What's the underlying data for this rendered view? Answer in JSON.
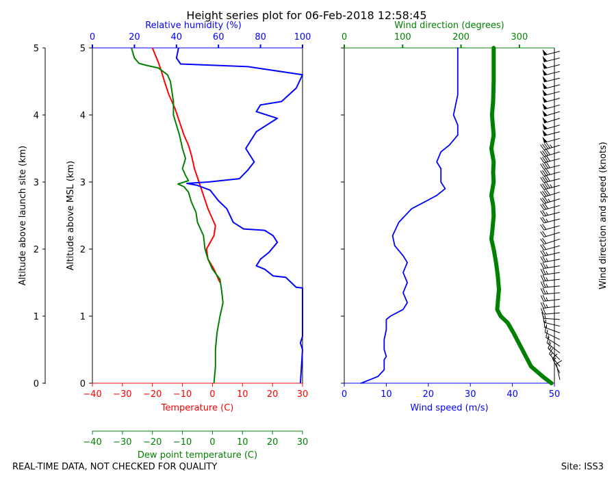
{
  "title": "Height series plot for 06-Feb-2018 12:58:45",
  "footer": {
    "left": "REAL-TIME DATA, NOT CHECKED FOR QUALITY",
    "right": "Site: ISS3"
  },
  "colors": {
    "temperature": "#ff0000",
    "dewpoint": "#008000",
    "humidity": "#0000ff",
    "wind_speed": "#0000ff",
    "wind_direction": "#008000",
    "barb": "#000000"
  },
  "chart_data": [
    {
      "type": "line",
      "panel": "thermodynamic",
      "y_axes": {
        "left_outer": {
          "label": "Altitude above launch site (km)",
          "ylim": [
            0,
            5
          ],
          "ticks": [
            0,
            1,
            2,
            3,
            4,
            5
          ]
        },
        "left_inner": {
          "label": "Altitude above MSL (km)",
          "ylim": [
            0,
            5
          ],
          "ticks": [
            0,
            1,
            2,
            3,
            4,
            5
          ]
        }
      },
      "x_axes": {
        "temperature": {
          "label": "Temperature (C)",
          "xlim": [
            -40,
            30
          ],
          "ticks": [
            -40,
            -30,
            -20,
            -10,
            0,
            10,
            20,
            30
          ],
          "color": "#ff0000"
        },
        "dewpoint": {
          "label": "Dew point temperature (C)",
          "xlim": [
            -40,
            30
          ],
          "ticks": [
            -40,
            -30,
            -20,
            -10,
            0,
            10,
            20,
            30
          ],
          "color": "#008000"
        },
        "humidity": {
          "label": "Relative humidity (%)",
          "xlim": [
            0,
            100
          ],
          "ticks": [
            0,
            20,
            40,
            60,
            80,
            100
          ],
          "color": "#0000ff"
        }
      },
      "series": [
        {
          "axis": "temperature",
          "color": "#ff0000",
          "points": [
            [
              2.5,
              1.5
            ],
            [
              0.5,
              1.7
            ],
            [
              -1.5,
              1.85
            ],
            [
              -2,
              2
            ],
            [
              0.5,
              2.2
            ],
            [
              1,
              2.35
            ],
            [
              -0.5,
              2.5
            ],
            [
              -1.5,
              2.6
            ],
            [
              -3,
              2.8
            ],
            [
              -4.5,
              3
            ],
            [
              -6,
              3.2
            ],
            [
              -7,
              3.4
            ],
            [
              -8,
              3.55
            ],
            [
              -9.5,
              3.7
            ],
            [
              -11,
              3.9
            ],
            [
              -12.5,
              4.1
            ],
            [
              -14.5,
              4.3
            ],
            [
              -16,
              4.5
            ],
            [
              -17,
              4.65
            ],
            [
              -18,
              4.78
            ],
            [
              -20,
              5
            ]
          ]
        },
        {
          "axis": "dewpoint",
          "color": "#008000",
          "points": [
            [
              0.5,
              0
            ],
            [
              1,
              0.25
            ],
            [
              1,
              0.5
            ],
            [
              1.5,
              0.75
            ],
            [
              2.5,
              1
            ],
            [
              3.5,
              1.2
            ],
            [
              3,
              1.4
            ],
            [
              2.5,
              1.55
            ],
            [
              0,
              1.7
            ],
            [
              -1.5,
              1.85
            ],
            [
              -2.5,
              2
            ],
            [
              -3,
              2.2
            ],
            [
              -4,
              2.3
            ],
            [
              -5,
              2.4
            ],
            [
              -5.5,
              2.55
            ],
            [
              -7,
              2.7
            ],
            [
              -8,
              2.85
            ],
            [
              -9.5,
              2.93
            ],
            [
              -11.5,
              2.97
            ],
            [
              -8,
              3.02
            ],
            [
              -9,
              3.1
            ],
            [
              -10,
              3.2
            ],
            [
              -9,
              3.35
            ],
            [
              -10,
              3.5
            ],
            [
              -11,
              3.7
            ],
            [
              -12,
              3.85
            ],
            [
              -13,
              4
            ],
            [
              -13,
              4.2
            ],
            [
              -13.5,
              4.35
            ],
            [
              -14,
              4.5
            ],
            [
              -15,
              4.6
            ],
            [
              -18,
              4.7
            ],
            [
              -22,
              4.74
            ],
            [
              -24.5,
              4.77
            ],
            [
              -26,
              4.85
            ],
            [
              -27,
              5
            ]
          ]
        },
        {
          "axis": "humidity",
          "color": "#0000ff",
          "points": [
            [
              99,
              0
            ],
            [
              100,
              0.5
            ],
            [
              99,
              0.6
            ],
            [
              100,
              0.7
            ],
            [
              100,
              1
            ],
            [
              100,
              1.42
            ],
            [
              97,
              1.43
            ],
            [
              92,
              1.58
            ],
            [
              86,
              1.6
            ],
            [
              82,
              1.7
            ],
            [
              78,
              1.75
            ],
            [
              80,
              1.85
            ],
            [
              84,
              1.95
            ],
            [
              88,
              2.1
            ],
            [
              86,
              2.2
            ],
            [
              82,
              2.28
            ],
            [
              72,
              2.3
            ],
            [
              67,
              2.4
            ],
            [
              64,
              2.6
            ],
            [
              60,
              2.72
            ],
            [
              56,
              2.88
            ],
            [
              50,
              2.95
            ],
            [
              45,
              2.98
            ],
            [
              55,
              3
            ],
            [
              70,
              3.05
            ],
            [
              74,
              3.18
            ],
            [
              77,
              3.3
            ],
            [
              73,
              3.5
            ],
            [
              78,
              3.75
            ],
            [
              88,
              3.95
            ],
            [
              78,
              4.05
            ],
            [
              80,
              4.15
            ],
            [
              90,
              4.2
            ],
            [
              97,
              4.4
            ],
            [
              100,
              4.6
            ],
            [
              74,
              4.72
            ],
            [
              42,
              4.76
            ],
            [
              40,
              4.85
            ],
            [
              41,
              5
            ]
          ]
        }
      ]
    },
    {
      "type": "line",
      "panel": "wind",
      "x_axes": {
        "wind_speed": {
          "label": "Wind speed (m/s)",
          "xlim": [
            0,
            50
          ],
          "ticks": [
            0,
            10,
            20,
            30,
            40,
            50
          ],
          "color": "#0000ff"
        },
        "wind_direction": {
          "label": "Wind direction (degrees)",
          "xlim": [
            0,
            360
          ],
          "ticks": [
            0,
            100,
            200,
            300
          ],
          "color": "#008000"
        }
      },
      "y_axes": {
        "ylim": [
          0,
          5
        ]
      },
      "right_label": "Wind direction and speed (knots)",
      "series": [
        {
          "axis": "wind_speed",
          "color": "#0000ff",
          "points": [
            [
              4,
              0
            ],
            [
              8,
              0.1
            ],
            [
              9.5,
              0.2
            ],
            [
              9.5,
              0.35
            ],
            [
              10,
              0.4
            ],
            [
              9.5,
              0.5
            ],
            [
              9.5,
              0.65
            ],
            [
              10,
              0.8
            ],
            [
              10,
              0.95
            ],
            [
              11,
              1
            ],
            [
              14,
              1.1
            ],
            [
              15,
              1.2
            ],
            [
              14,
              1.35
            ],
            [
              15,
              1.5
            ],
            [
              14,
              1.65
            ],
            [
              15,
              1.8
            ],
            [
              14,
              1.9
            ],
            [
              12,
              2.05
            ],
            [
              11.5,
              2.2
            ],
            [
              13,
              2.4
            ],
            [
              16,
              2.6
            ],
            [
              19,
              2.7
            ],
            [
              22,
              2.8
            ],
            [
              24,
              2.9
            ],
            [
              23,
              3
            ],
            [
              23,
              3.2
            ],
            [
              22,
              3.3
            ],
            [
              23,
              3.45
            ],
            [
              25,
              3.55
            ],
            [
              27,
              3.7
            ],
            [
              27,
              3.85
            ],
            [
              26,
              4
            ],
            [
              27,
              4.3
            ],
            [
              27,
              4.6
            ],
            [
              27,
              5
            ]
          ]
        },
        {
          "axis": "wind_direction",
          "color": "#008000",
          "points": [
            [
              355,
              0
            ],
            [
              340,
              0.1
            ],
            [
              320,
              0.25
            ],
            [
              305,
              0.5
            ],
            [
              290,
              0.75
            ],
            [
              280,
              0.9
            ],
            [
              268,
              1
            ],
            [
              262,
              1.1
            ],
            [
              263,
              1.2
            ],
            [
              265,
              1.4
            ],
            [
              263,
              1.6
            ],
            [
              260,
              1.8
            ],
            [
              256,
              2
            ],
            [
              252,
              2.15
            ],
            [
              254,
              2.3
            ],
            [
              256,
              2.5
            ],
            [
              255,
              2.65
            ],
            [
              252,
              2.8
            ],
            [
              256,
              3
            ],
            [
              255,
              3.15
            ],
            [
              256,
              3.3
            ],
            [
              252,
              3.5
            ],
            [
              256,
              3.7
            ],
            [
              253,
              4
            ],
            [
              255,
              4.2
            ],
            [
              256,
              4.5
            ],
            [
              256,
              4.7
            ],
            [
              256,
              5
            ]
          ]
        }
      ]
    }
  ]
}
